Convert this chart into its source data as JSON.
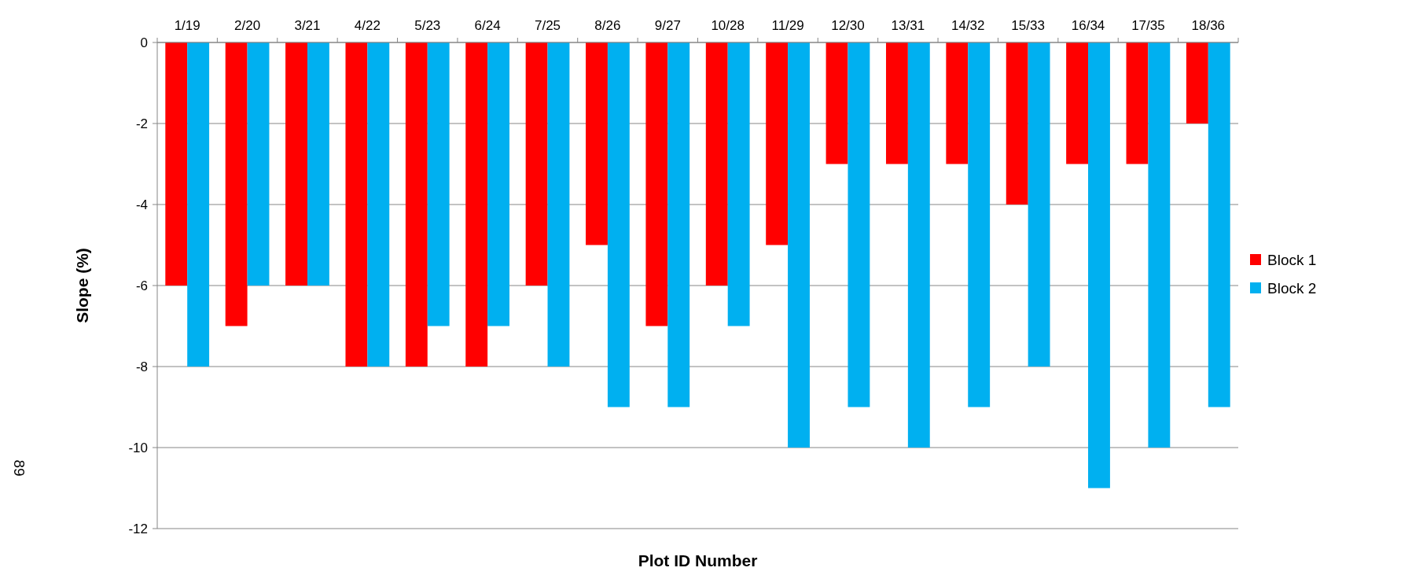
{
  "chart_data": {
    "type": "bar",
    "xlabel": "Plot ID Number",
    "ylabel": "Slope (%)",
    "categories": [
      "1/19",
      "2/20",
      "3/21",
      "4/22",
      "5/23",
      "6/24",
      "7/25",
      "8/26",
      "9/27",
      "10/28",
      "11/29",
      "12/30",
      "13/31",
      "14/32",
      "15/33",
      "16/34",
      "17/35",
      "18/36"
    ],
    "series": [
      {
        "name": "Block 1",
        "color": "#ff0000",
        "values": [
          -6,
          -7,
          -6,
          -8,
          -8,
          -8,
          -6,
          -5,
          -7,
          -6,
          -5,
          -3,
          -3,
          -3,
          -4,
          -3,
          -3,
          -2
        ]
      },
      {
        "name": "Block 2",
        "color": "#00b0f0",
        "values": [
          -8,
          -6,
          -6,
          -8,
          -7,
          -7,
          -8,
          -9,
          -9,
          -7,
          -10,
          -9,
          -10,
          -9,
          -8,
          -11,
          -10,
          -9
        ]
      }
    ],
    "ylim": [
      -12,
      0
    ],
    "yticks": [
      0,
      -2,
      -4,
      -6,
      -8,
      -10,
      -12
    ],
    "grid": "y",
    "legend": "right",
    "annotations": [
      "89"
    ]
  }
}
